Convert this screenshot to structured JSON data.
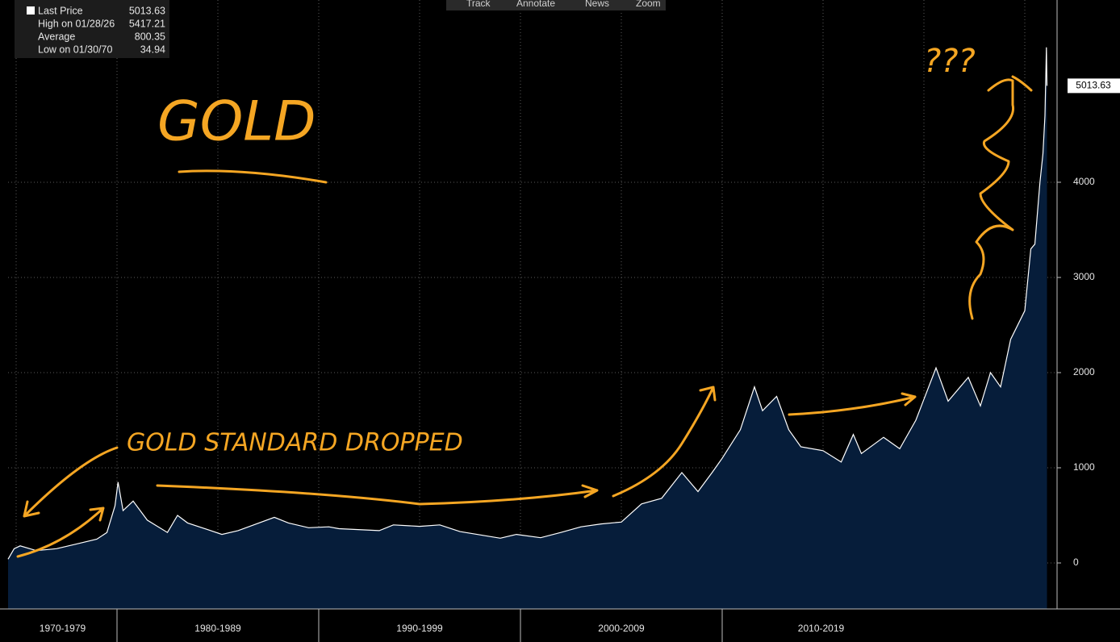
{
  "toolbar": [
    "Track",
    "Annotate",
    "News",
    "Zoom"
  ],
  "chart_data": {
    "type": "area",
    "legend": [
      {
        "label": "Last Price",
        "value": 5013.63
      },
      {
        "label": "High on 01/28/26",
        "value": 5417.21
      },
      {
        "label": "Average",
        "value": 800.35
      },
      {
        "label": "Low on 01/30/70",
        "value": 34.94
      }
    ],
    "annotations": [
      "GOLD",
      "GOLD STANDARD DROPPED",
      "???"
    ],
    "series": [
      {
        "name": "Last Price",
        "color": "#ffffff",
        "fill": "#061d3a",
        "x": [
          1974.6,
          1974.9,
          1975.2,
          1976.0,
          1977.0,
          1978.0,
          1979.0,
          1979.5,
          1979.9,
          1980.05,
          1980.3,
          1980.8,
          1981.5,
          1982.5,
          1983.0,
          1983.5,
          1984.5,
          1985.2,
          1986.0,
          1987.8,
          1988.5,
          1989.5,
          1990.5,
          1991.0,
          1993.0,
          1993.7,
          1995.0,
          1996.0,
          1997.0,
          1999.0,
          1999.8,
          2001.0,
          2002.0,
          2003.0,
          2004.0,
          2005.0,
          2006.0,
          2007.0,
          2008.0,
          2008.8,
          2009.5,
          2010.0,
          2010.9,
          2011.6,
          2012.0,
          2012.7,
          2013.3,
          2013.9,
          2015.0,
          2015.9,
          2016.5,
          2016.9,
          2018.0,
          2018.8,
          2019.6,
          2020.6,
          2021.2,
          2022.2,
          2022.8,
          2023.3,
          2023.8,
          2024.3,
          2025.0,
          2025.3,
          2025.5,
          2025.75,
          2025.9,
          2026.0,
          2026.07,
          2026.1
        ],
        "values": [
          40,
          150,
          180,
          130,
          150,
          200,
          250,
          320,
          600,
          850,
          550,
          650,
          450,
          320,
          500,
          420,
          350,
          300,
          340,
          480,
          420,
          370,
          380,
          360,
          340,
          400,
          385,
          400,
          330,
          260,
          300,
          265,
          320,
          380,
          410,
          430,
          620,
          680,
          950,
          750,
          950,
          1100,
          1400,
          1850,
          1600,
          1750,
          1400,
          1220,
          1180,
          1060,
          1350,
          1150,
          1320,
          1200,
          1500,
          2050,
          1700,
          1950,
          1650,
          2000,
          1850,
          2350,
          2650,
          3300,
          3350,
          4000,
          4300,
          4700,
          5417.21,
          5013.63
        ]
      }
    ],
    "xlim": [
      1974.6,
      2026.6
    ],
    "xticks": [
      {
        "value": 1970,
        "label": "1970-1979"
      },
      {
        "value": 1980,
        "label": "1980-1989"
      },
      {
        "value": 1990,
        "label": "1990-1999"
      },
      {
        "value": 2000,
        "label": "2000-2009"
      },
      {
        "value": 2010,
        "label": "2010-2019"
      }
    ],
    "xgrid": [
      1975,
      1980,
      1985,
      1990,
      1995,
      2000,
      2005,
      2010,
      2015,
      2020,
      2025
    ],
    "ylim": [
      -483,
      5915
    ],
    "yticks": [
      0,
      1000,
      2000,
      3000,
      4000
    ],
    "grid": true
  }
}
